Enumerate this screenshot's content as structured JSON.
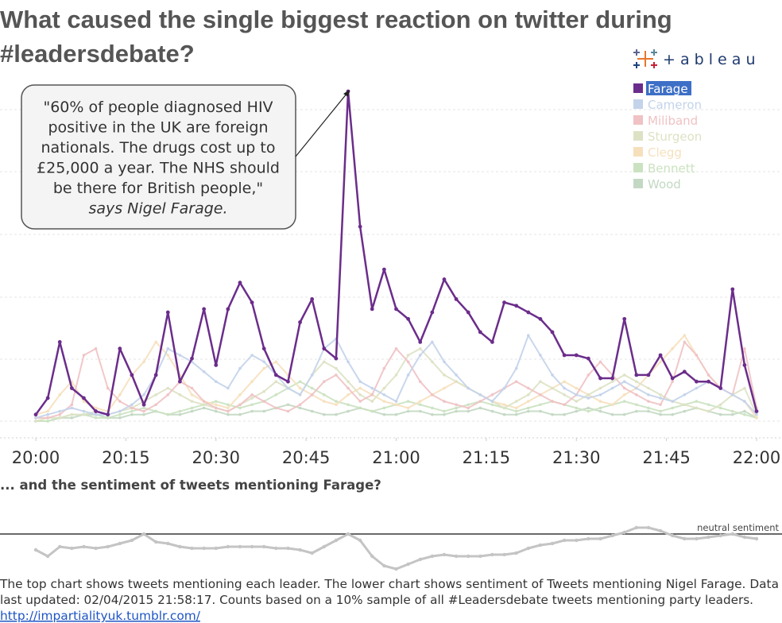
{
  "chart_data": [
    {
      "type": "line",
      "title": [
        "What caused the single biggest reaction on twitter during",
        "#leadersdebate?"
      ],
      "logo": "+ a b l e a u",
      "x": [
        0,
        2,
        4,
        6,
        8,
        10,
        12,
        14,
        16,
        18,
        20,
        22,
        24,
        26,
        28,
        30,
        32,
        34,
        36,
        38,
        40,
        42,
        44,
        46,
        48,
        50,
        52,
        54,
        56,
        58,
        60,
        62,
        64,
        66,
        68,
        70,
        72,
        74,
        76,
        78,
        80,
        82,
        84,
        86,
        88,
        90,
        92,
        94,
        96,
        98,
        100,
        102,
        104,
        106,
        108,
        110,
        112,
        114,
        116,
        118,
        120
      ],
      "xlim": [
        0,
        120
      ],
      "xticks": [
        {
          "value": 0,
          "label": "20:00"
        },
        {
          "value": 15,
          "label": "20:15"
        },
        {
          "value": 30,
          "label": "20:30"
        },
        {
          "value": 45,
          "label": "20:45"
        },
        {
          "value": 60,
          "label": "21:00"
        },
        {
          "value": 75,
          "label": "21:15"
        },
        {
          "value": 90,
          "label": "21:30"
        },
        {
          "value": 105,
          "label": "21:45"
        },
        {
          "value": 120,
          "label": "22:00"
        }
      ],
      "ylim": [
        0,
        100
      ],
      "legend": "right",
      "highlight": "Farage",
      "annotation": {
        "lines": [
          "\"60% of people diagnosed HIV",
          "positive in the UK are foreign",
          "nationals. The drugs cost up to",
          "£25,000 a year. The NHS should",
          "be there for British people,\""
        ],
        "attribution": "says Nigel Farage."
      },
      "series": [
        {
          "name": "Farage",
          "color": "#6b2d8b",
          "values": [
            2,
            7,
            24,
            10,
            7,
            3,
            2,
            22,
            14,
            5,
            14,
            33,
            12,
            19,
            34,
            17,
            34,
            42,
            36,
            22,
            14,
            12,
            30,
            37,
            22,
            19,
            100,
            59,
            34,
            46,
            34,
            31,
            24,
            33,
            43,
            37,
            33,
            27,
            24,
            36,
            35,
            33,
            31,
            27,
            20,
            20,
            19,
            13,
            13,
            31,
            14,
            14,
            20,
            13,
            15,
            12,
            12,
            10,
            40,
            17,
            3
          ]
        },
        {
          "name": "Cameron",
          "color": "#c3d3ea",
          "values": [
            1,
            2,
            3,
            4,
            3,
            2,
            2,
            3,
            5,
            8,
            14,
            22,
            20,
            18,
            15,
            12,
            10,
            16,
            20,
            18,
            14,
            10,
            8,
            14,
            22,
            25,
            18,
            12,
            10,
            8,
            6,
            14,
            20,
            24,
            18,
            14,
            10,
            8,
            6,
            10,
            16,
            26,
            20,
            14,
            10,
            8,
            7,
            8,
            10,
            12,
            10,
            8,
            7,
            6,
            8,
            10,
            12,
            10,
            8,
            6,
            2
          ]
        },
        {
          "name": "Miliband",
          "color": "#f0c2c4",
          "values": [
            1,
            1,
            2,
            5,
            20,
            22,
            10,
            6,
            4,
            3,
            5,
            8,
            12,
            10,
            6,
            4,
            3,
            5,
            8,
            6,
            4,
            3,
            5,
            8,
            12,
            14,
            10,
            6,
            8,
            16,
            22,
            18,
            12,
            8,
            6,
            5,
            4,
            6,
            8,
            10,
            12,
            10,
            8,
            6,
            5,
            8,
            14,
            18,
            14,
            10,
            8,
            6,
            5,
            12,
            24,
            20,
            14,
            10,
            8,
            22,
            4
          ]
        },
        {
          "name": "Sturgeon",
          "color": "#dde2c4",
          "values": [
            0,
            1,
            1,
            2,
            2,
            3,
            2,
            3,
            4,
            6,
            8,
            10,
            8,
            6,
            5,
            4,
            3,
            5,
            7,
            9,
            12,
            10,
            8,
            14,
            18,
            16,
            12,
            8,
            6,
            10,
            14,
            20,
            22,
            18,
            14,
            12,
            10,
            8,
            6,
            4,
            6,
            8,
            12,
            10,
            8,
            6,
            8,
            10,
            12,
            14,
            12,
            10,
            8,
            6,
            5,
            4,
            3,
            5,
            8,
            10,
            2
          ]
        },
        {
          "name": "Clegg",
          "color": "#f6e0bc",
          "values": [
            2,
            3,
            8,
            12,
            6,
            4,
            3,
            8,
            14,
            18,
            24,
            20,
            14,
            8,
            6,
            5,
            4,
            8,
            12,
            16,
            18,
            14,
            10,
            8,
            6,
            5,
            8,
            10,
            8,
            6,
            5,
            4,
            6,
            8,
            10,
            12,
            10,
            8,
            6,
            5,
            4,
            6,
            8,
            10,
            12,
            10,
            8,
            6,
            5,
            8,
            10,
            14,
            18,
            22,
            26,
            20,
            14,
            10,
            8,
            6,
            1
          ]
        },
        {
          "name": "Bennett",
          "color": "#cbe2c1",
          "values": [
            0,
            0,
            1,
            2,
            2,
            1,
            1,
            2,
            3,
            4,
            3,
            2,
            3,
            4,
            5,
            6,
            5,
            4,
            5,
            6,
            8,
            10,
            12,
            10,
            8,
            6,
            5,
            4,
            3,
            4,
            5,
            6,
            5,
            4,
            3,
            4,
            5,
            6,
            5,
            4,
            3,
            4,
            5,
            6,
            5,
            4,
            3,
            4,
            5,
            6,
            5,
            4,
            3,
            4,
            5,
            6,
            5,
            4,
            3,
            2,
            1
          ]
        },
        {
          "name": "Wood",
          "color": "#c3d8c3",
          "values": [
            0,
            0,
            1,
            1,
            2,
            2,
            1,
            1,
            2,
            2,
            3,
            2,
            2,
            3,
            4,
            3,
            2,
            2,
            3,
            3,
            4,
            5,
            4,
            3,
            2,
            2,
            3,
            4,
            3,
            2,
            2,
            3,
            3,
            2,
            2,
            3,
            3,
            4,
            3,
            2,
            2,
            3,
            3,
            2,
            2,
            3,
            4,
            3,
            2,
            2,
            3,
            3,
            2,
            2,
            3,
            4,
            3,
            2,
            2,
            3,
            1
          ]
        }
      ]
    },
    {
      "type": "line",
      "title": "... and the sentiment of tweets mentioning Farage?",
      "x": [
        0,
        2,
        4,
        6,
        8,
        10,
        12,
        14,
        16,
        18,
        20,
        22,
        24,
        26,
        28,
        30,
        32,
        34,
        36,
        38,
        40,
        42,
        44,
        46,
        48,
        50,
        52,
        54,
        56,
        58,
        60,
        62,
        64,
        66,
        68,
        70,
        72,
        74,
        76,
        78,
        80,
        82,
        84,
        86,
        88,
        90,
        92,
        94,
        96,
        98,
        100,
        102,
        104,
        106,
        108,
        110,
        112,
        114,
        116,
        118,
        120
      ],
      "xlim": [
        0,
        120
      ],
      "ylim": [
        -12,
        3
      ],
      "neutral_line": {
        "value": 0,
        "label": "neutral sentiment"
      },
      "color": "#c4c4c4",
      "values": [
        -5,
        -7,
        -4,
        -4.5,
        -4,
        -4.5,
        -4,
        -3,
        -2,
        0,
        -2.5,
        -3,
        -4,
        -4.5,
        -4.5,
        -4.5,
        -4,
        -4,
        -4,
        -4,
        -4.5,
        -4.5,
        -5,
        -6,
        -4,
        -2,
        0,
        -2,
        -7,
        -10,
        -11,
        -9.5,
        -8,
        -7,
        -6.5,
        -7,
        -7,
        -7,
        -6.5,
        -6.5,
        -6,
        -4.5,
        -3.5,
        -3,
        -2,
        -2,
        -1.5,
        -1.5,
        -0.5,
        0.5,
        2,
        2,
        1,
        -0.5,
        -1.5,
        -1.5,
        -1,
        -0.5,
        0,
        -1,
        -1.5
      ]
    }
  ],
  "footer": {
    "lines": [
      "The top chart shows tweets mentioning each leader. The lower chart shows sentiment of Tweets mentioning Nigel Farage. Data",
      "last updated: 02/04/2015 21:58:17. Counts based on a 10% sample of all #Leadersdebate tweets mentioning party leaders."
    ],
    "link": "http://impartialityuk.tumblr.com/"
  }
}
